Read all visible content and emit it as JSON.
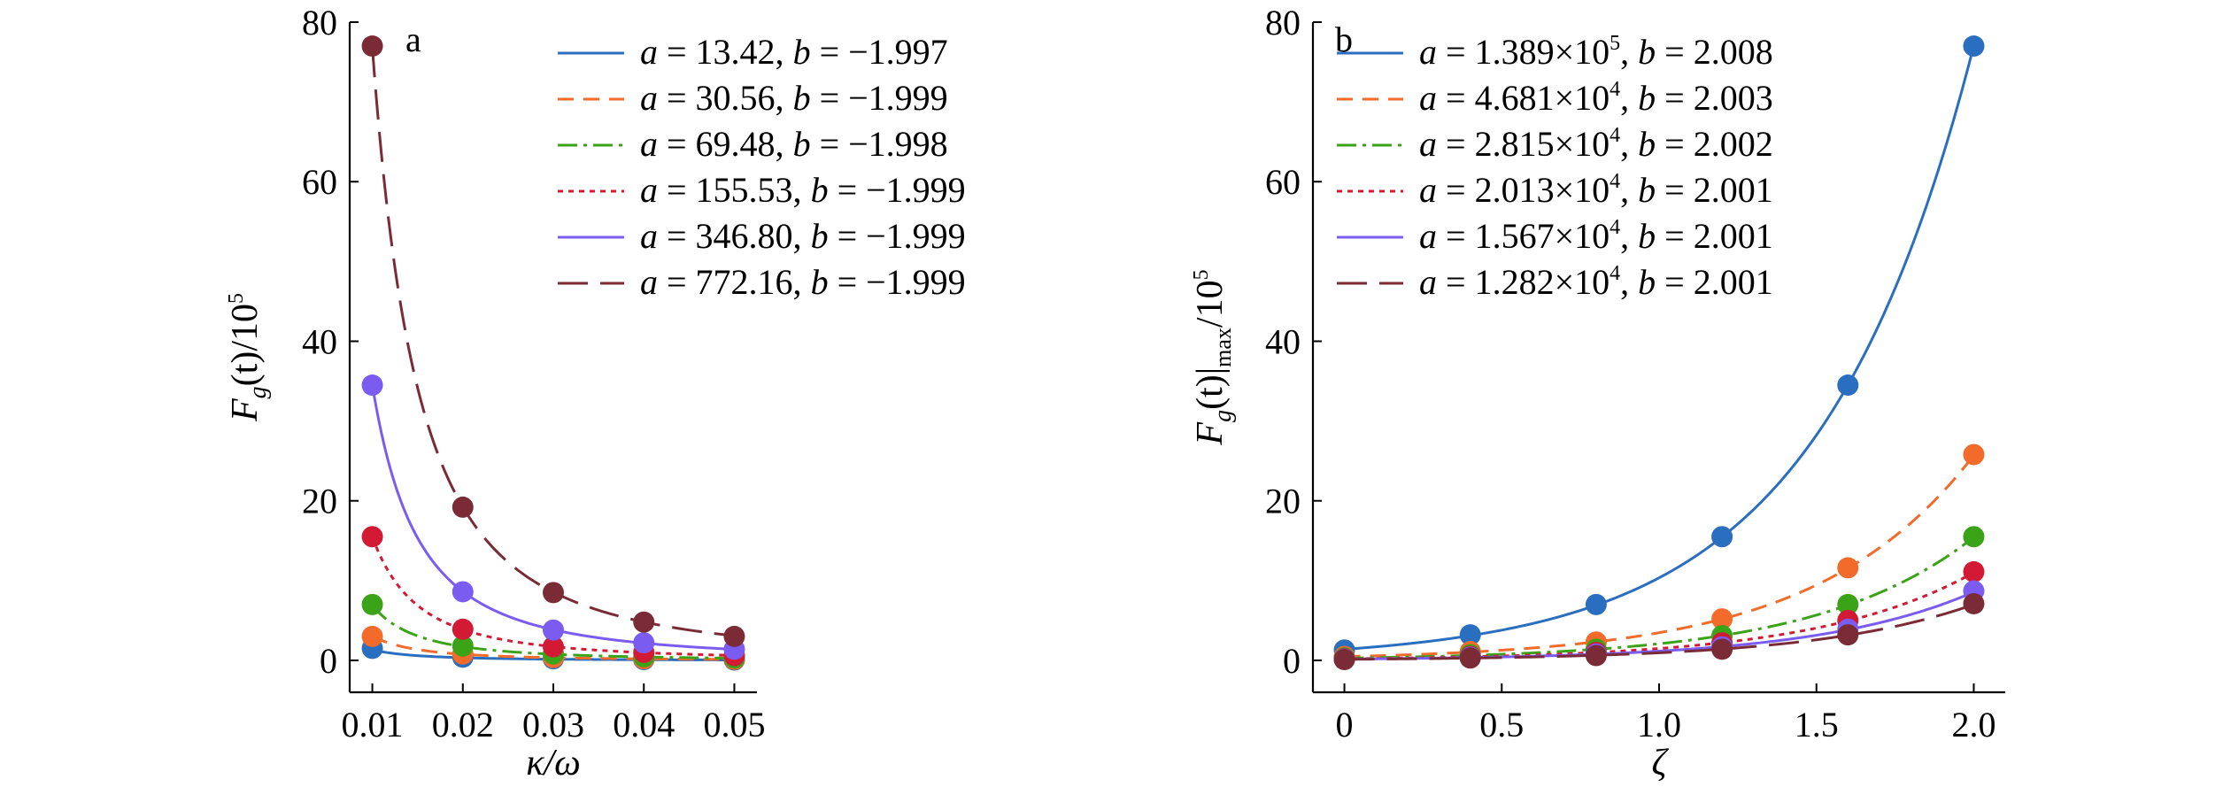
{
  "chart_data": [
    {
      "type": "scatter",
      "panel": "a",
      "xlabel": "κ/ω",
      "xlim": [
        0.0075,
        0.0525
      ],
      "xticks": [
        "0.01",
        "0.02",
        "0.03",
        "0.04",
        "0.05"
      ],
      "xtick_values": [
        0.01,
        0.02,
        0.03,
        0.04,
        0.05
      ],
      "ylabel": {
        "base": "F",
        "sub": "g",
        "mid": "(t)/10",
        "sup": "5"
      },
      "ylim": [
        -4,
        80
      ],
      "yticks": [
        "0",
        "20",
        "40",
        "60",
        "80"
      ],
      "ytick_values": [
        0,
        20,
        40,
        60,
        80
      ],
      "legend_position": "top-right",
      "x": [
        0.01,
        0.02,
        0.03,
        0.04,
        0.05
      ],
      "series": [
        {
          "a": "13.42",
          "b": "−1.997",
          "legend": [
            "a",
            " = 13.42, ",
            "b",
            " = −1.997"
          ],
          "fit_a": 13.42,
          "fit_b": -1.997,
          "values": [
            1.5,
            0.4,
            0.2,
            0.1,
            0.05
          ],
          "color": "#2a6ebf",
          "dash": ""
        },
        {
          "a": "30.56",
          "b": "−1.999",
          "legend": [
            "a",
            " = 30.56, ",
            "b",
            " = −1.999"
          ],
          "fit_a": 30.56,
          "fit_b": -1.999,
          "values": [
            3.0,
            0.8,
            0.35,
            0.2,
            0.13
          ],
          "color": "#f26b2a",
          "dash": "18,11"
        },
        {
          "a": "69.48",
          "b": "−1.998",
          "legend": [
            "a",
            " = 69.48, ",
            "b",
            " = −1.998"
          ],
          "fit_a": 69.48,
          "fit_b": -1.998,
          "values": [
            7.0,
            1.8,
            0.8,
            0.45,
            0.3
          ],
          "color": "#3aa317",
          "dash": "22,7,4,7"
        },
        {
          "a": "155.53",
          "b": "−1.999",
          "legend": [
            "a",
            " = 155.53, ",
            "b",
            " = −1.999"
          ],
          "fit_a": 155.53,
          "fit_b": -1.999,
          "values": [
            15.5,
            3.9,
            1.7,
            1.0,
            0.6
          ],
          "color": "#d21a34",
          "dash": "6,6"
        },
        {
          "a": "346.80",
          "b": "−1.999",
          "legend": [
            "a",
            " = 346.80, ",
            "b",
            " = −1.999"
          ],
          "fit_a": 346.8,
          "fit_b": -1.999,
          "values": [
            34.5,
            8.6,
            3.8,
            2.2,
            1.4
          ],
          "color": "#7a5cf0",
          "dash": ""
        },
        {
          "a": "772.16",
          "b": "−1.999",
          "legend": [
            "a",
            " = 772.16, ",
            "b",
            " = −1.999"
          ],
          "fit_a": 772.16,
          "fit_b": -1.999,
          "values": [
            77.0,
            19.2,
            8.5,
            4.8,
            3.0
          ],
          "color": "#7a2b35",
          "dash": "34,14"
        }
      ]
    },
    {
      "type": "scatter",
      "panel": "b",
      "xlabel": "ζ",
      "xlim": [
        -0.1,
        2.1
      ],
      "xticks": [
        "0",
        "0.5",
        "1.0",
        "1.5",
        "2.0"
      ],
      "xtick_values": [
        0,
        0.5,
        1.0,
        1.5,
        2.0
      ],
      "ylabel": {
        "base": "F",
        "sub": "g",
        "mid": "(t)|",
        "sub2": "max",
        "tail": "/10",
        "sup": "5"
      },
      "ylim": [
        -4,
        80
      ],
      "yticks": [
        "0",
        "20",
        "40",
        "60",
        "80"
      ],
      "ytick_values": [
        0,
        20,
        40,
        60,
        80
      ],
      "legend_position": "top-left",
      "x": [
        0,
        0.4,
        0.8,
        1.2,
        1.6,
        2.0
      ],
      "series": [
        {
          "a_mant": "1.389×10",
          "a_exp": "5",
          "b": "2.008",
          "fit_a": 138900,
          "fit_b": 2.008,
          "values": [
            1.3,
            3.2,
            7.0,
            15.5,
            34.5,
            77.0
          ],
          "color": "#2a6ebf",
          "dash": ""
        },
        {
          "a_mant": "4.681×10",
          "a_exp": "4",
          "b": "2.003",
          "fit_a": 46810,
          "fit_b": 2.003,
          "values": [
            0.5,
            1.1,
            2.3,
            5.2,
            11.6,
            25.8
          ],
          "color": "#f26b2a",
          "dash": "18,11"
        },
        {
          "a_mant": "2.815×10",
          "a_exp": "4",
          "b": "2.002",
          "fit_a": 28150,
          "fit_b": 2.002,
          "values": [
            0.3,
            0.7,
            1.4,
            3.1,
            7.0,
            15.5
          ],
          "color": "#3aa317",
          "dash": "22,7,4,7"
        },
        {
          "a_mant": "2.013×10",
          "a_exp": "4",
          "b": "2.001",
          "fit_a": 20130,
          "fit_b": 2.001,
          "values": [
            0.2,
            0.5,
            1.0,
            2.2,
            5.0,
            11.1
          ],
          "color": "#d21a34",
          "dash": "6,6"
        },
        {
          "a_mant": "1.567×10",
          "a_exp": "4",
          "b": "2.001",
          "fit_a": 15670,
          "fit_b": 2.001,
          "values": [
            0.15,
            0.4,
            0.8,
            1.7,
            3.9,
            8.7
          ],
          "color": "#7a5cf0",
          "dash": ""
        },
        {
          "a_mant": "1.282×10",
          "a_exp": "4",
          "b": "2.001",
          "fit_a": 12820,
          "fit_b": 2.001,
          "values": [
            0.1,
            0.3,
            0.6,
            1.4,
            3.2,
            7.1
          ],
          "color": "#7a2b35",
          "dash": "34,14"
        }
      ]
    }
  ]
}
